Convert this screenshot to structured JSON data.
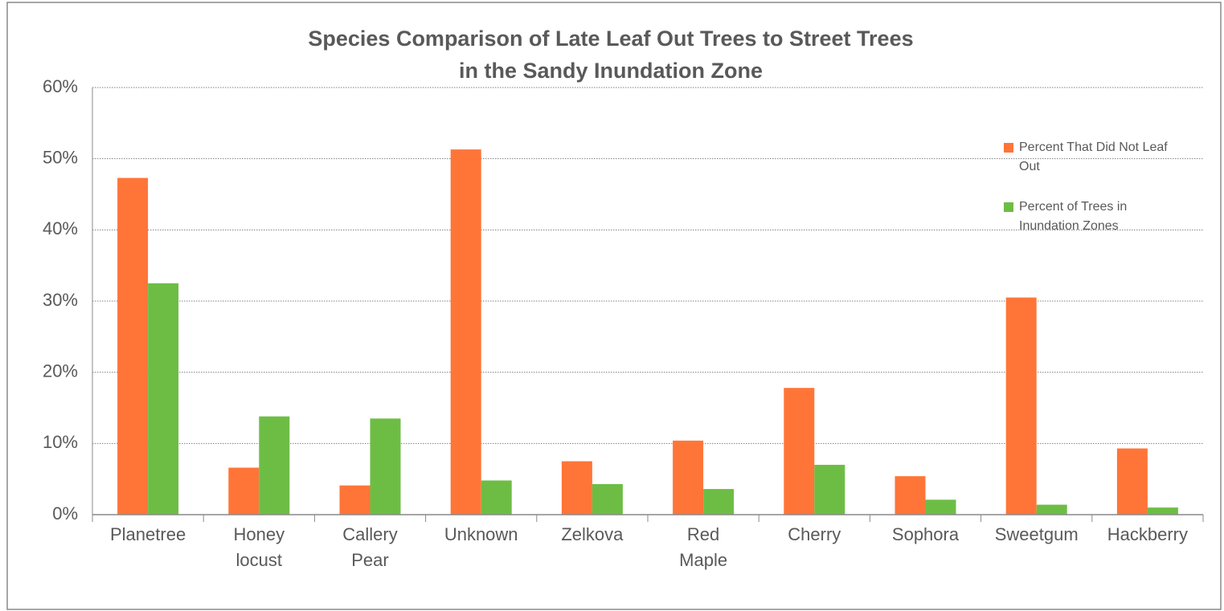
{
  "chart_data": {
    "type": "bar",
    "title": "Species Comparison of Late Leaf Out Trees to Street Trees in the Sandy Inundation Zone",
    "categories": [
      "Planetree",
      "Honey locust",
      "Callery Pear",
      "Unknown",
      "Zelkova",
      "Red Maple",
      "Cherry",
      "Sophora",
      "Sweetgum",
      "Hackberry"
    ],
    "series": [
      {
        "name": "Percent That Did Not Leaf Out",
        "color": "#ff7538",
        "values": [
          47.3,
          6.6,
          4.1,
          51.3,
          7.5,
          10.4,
          17.8,
          5.4,
          30.5,
          9.3
        ]
      },
      {
        "name": "Percent of Trees in Inundation Zones",
        "color": "#6dbd45",
        "values": [
          32.5,
          13.8,
          13.5,
          4.8,
          4.3,
          3.6,
          7.0,
          2.1,
          1.4,
          1.0
        ]
      }
    ],
    "ylim": [
      0,
      60
    ],
    "yticks": [
      {
        "value": 0,
        "label": "0%"
      },
      {
        "value": 10,
        "label": "10%"
      },
      {
        "value": 20,
        "label": "20%"
      },
      {
        "value": 30,
        "label": "30%"
      },
      {
        "value": 40,
        "label": "40%"
      },
      {
        "value": 50,
        "label": "50%"
      },
      {
        "value": 60,
        "label": "60%"
      }
    ],
    "grid": true,
    "legend": "right"
  }
}
